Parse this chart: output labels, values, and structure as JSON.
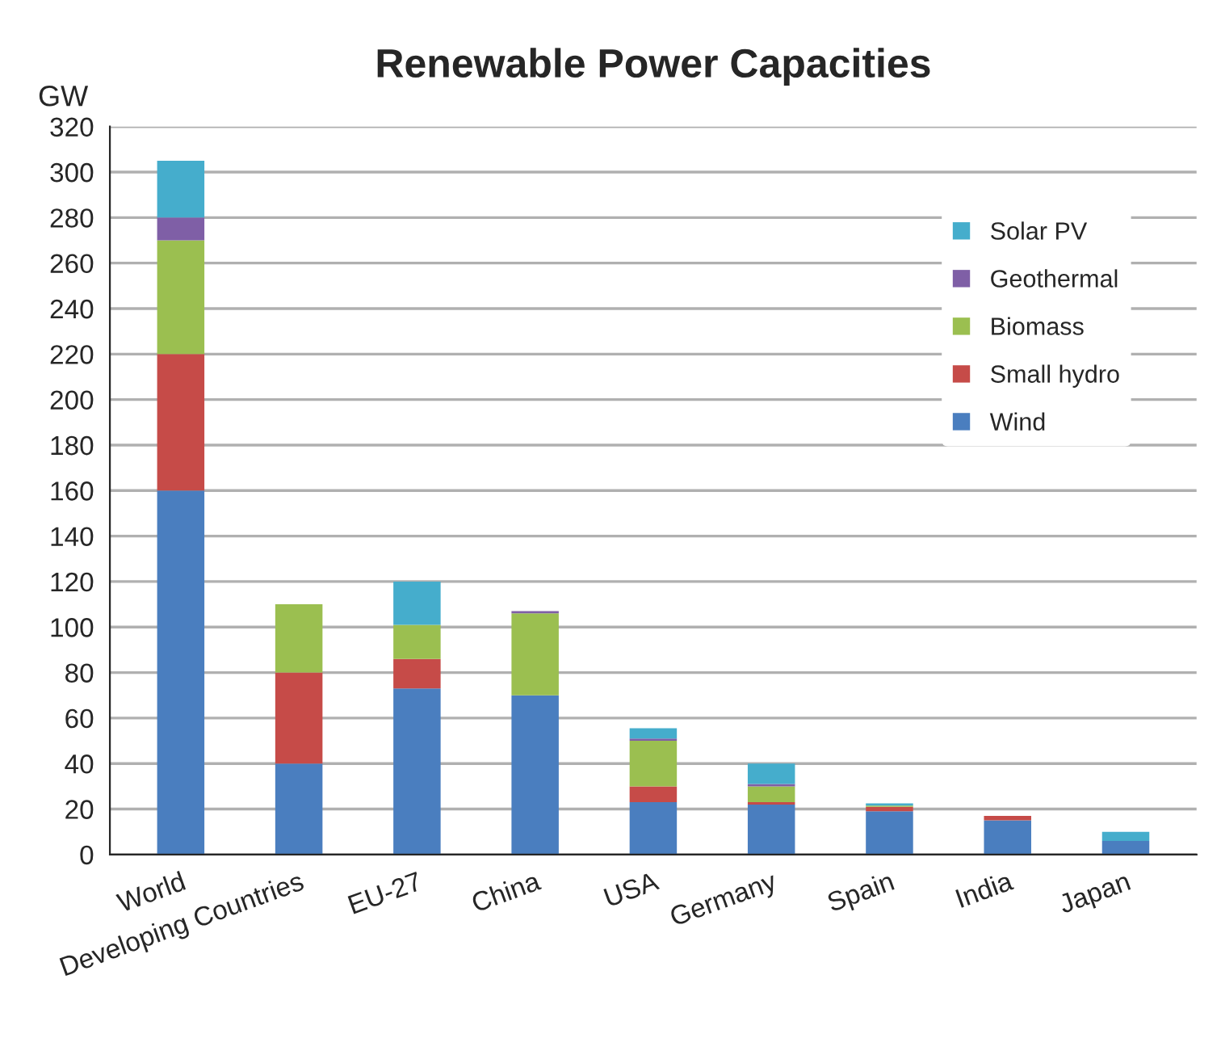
{
  "chart_data": {
    "type": "bar",
    "title": "Renewable Power Capacities",
    "ylabel": "GW",
    "stacked": true,
    "grid": "y",
    "legend": "top right",
    "categories": [
      "World",
      "Developing Countries",
      "EU-27",
      "China",
      "USA",
      "Germany",
      "Spain",
      "India",
      "Japan"
    ],
    "series": [
      {
        "name": "Wind",
        "color": "#4a7ebf",
        "values": [
          160,
          40,
          73,
          70,
          23,
          22,
          19,
          15,
          6
        ]
      },
      {
        "name": "Small hydro",
        "color": "#c64b48",
        "values": [
          60,
          40,
          13,
          0,
          7,
          1,
          2,
          2,
          0
        ]
      },
      {
        "name": "Biomass",
        "color": "#9bbf50",
        "values": [
          50,
          30,
          15,
          36,
          20,
          7,
          0.5,
          0,
          0
        ]
      },
      {
        "name": "Geothermal",
        "color": "#7f5fa6",
        "values": [
          10,
          0,
          0,
          1,
          1,
          1,
          0,
          0,
          0
        ]
      },
      {
        "name": "Solar PV",
        "color": "#45adcc",
        "values": [
          25,
          0,
          19,
          0,
          4.5,
          9,
          1,
          0,
          4
        ]
      }
    ],
    "ylim": [
      0,
      320
    ],
    "yticks": [
      0,
      20,
      40,
      60,
      80,
      100,
      120,
      140,
      160,
      180,
      200,
      220,
      240,
      260,
      280,
      300,
      320
    ]
  }
}
